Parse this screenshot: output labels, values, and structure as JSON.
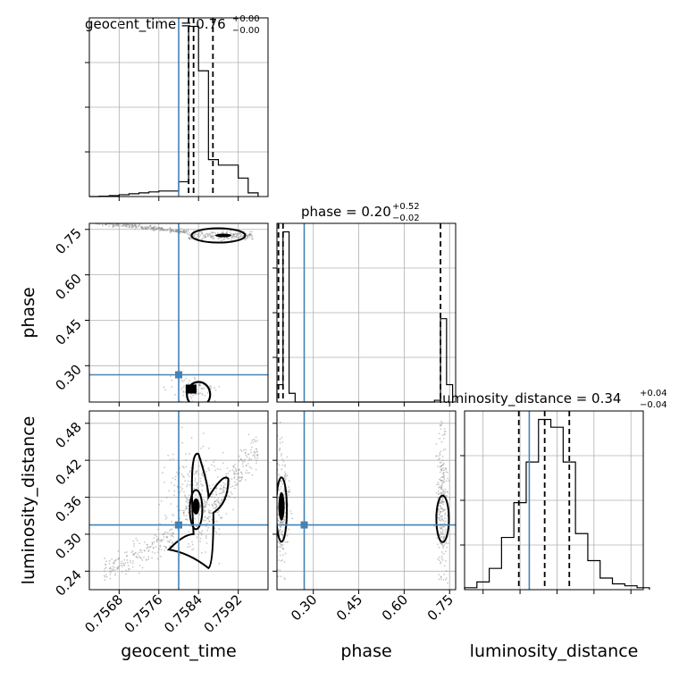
{
  "chart_data": {
    "type": "corner",
    "parameters": [
      {
        "name": "geocent_time",
        "range": [
          0.7562,
          0.7598
        ],
        "ticks": [
          "0.7568",
          "0.7576",
          "0.7584",
          "0.7592"
        ],
        "tick_values": [
          0.7568,
          0.7576,
          0.7584,
          0.7592
        ],
        "truth": 0.758,
        "quantiles": [
          0.7582,
          0.7583,
          0.75869
        ]
      },
      {
        "name": "phase",
        "range": [
          0.18,
          0.77
        ],
        "ticks": [
          "0.30",
          "0.45",
          "0.60",
          "0.75"
        ],
        "tick_values": [
          0.3,
          0.45,
          0.6,
          0.75
        ],
        "truth": 0.27,
        "quantiles": [
          0.185,
          0.2,
          0.72
        ]
      },
      {
        "name": "luminosity_distance",
        "range": [
          0.21,
          0.5
        ],
        "ticks": [
          "0.24",
          "0.30",
          "0.36",
          "0.42",
          "0.48"
        ],
        "tick_values": [
          0.24,
          0.3,
          0.36,
          0.42,
          0.48
        ],
        "truth": 0.315,
        "quantiles": [
          0.298,
          0.34,
          0.38
        ]
      }
    ],
    "titles": [
      {
        "main": "geocent_time = 0.76",
        "sup": "+0.00",
        "sub": "−0.00"
      },
      {
        "main": "phase = 0.20",
        "sup": "+0.52",
        "sub": "−0.02"
      },
      {
        "main": "luminosity_distance = 0.34",
        "sup": "+0.04",
        "sub": "−0.04"
      }
    ],
    "histograms": [
      {
        "param": "geocent_time",
        "bins": [
          0.7562,
          0.7564,
          0.7566,
          0.7568,
          0.757,
          0.7572,
          0.7574,
          0.7576,
          0.7578,
          0.758,
          0.7582,
          0.7584,
          0.7586,
          0.7588,
          0.759,
          0.7592,
          0.7594,
          0.7596
        ],
        "counts": [
          0,
          0.2,
          0.5,
          1,
          1.5,
          2,
          2.5,
          3,
          3,
          8,
          92,
          68,
          20,
          17,
          17,
          10,
          2,
          0
        ]
      },
      {
        "param": "phase",
        "bins": [
          0.18,
          0.2,
          0.22,
          0.24,
          0.26,
          0.28,
          0.3,
          0.32,
          0.34,
          0.36,
          0.38,
          0.4,
          0.42,
          0.44,
          0.46,
          0.48,
          0.5,
          0.52,
          0.54,
          0.56,
          0.58,
          0.6,
          0.62,
          0.64,
          0.66,
          0.68,
          0.7,
          0.72,
          0.74,
          0.76
        ],
        "counts": [
          10,
          98,
          5,
          0,
          0,
          0,
          0,
          0,
          0,
          0,
          0,
          0,
          0,
          0,
          0,
          0,
          0,
          0,
          0,
          0,
          0,
          0,
          0,
          0,
          0,
          0,
          1,
          48,
          10,
          0
        ]
      },
      {
        "param": "luminosity_distance",
        "bins": [
          0.21,
          0.23,
          0.25,
          0.27,
          0.29,
          0.31,
          0.33,
          0.35,
          0.37,
          0.39,
          0.41,
          0.43,
          0.45,
          0.47,
          0.49,
          0.51
        ],
        "counts": [
          1,
          4,
          11,
          27,
          45,
          66,
          88,
          84,
          66,
          29,
          15,
          6,
          3,
          2,
          1
        ]
      }
    ],
    "pairs": [
      {
        "x": "geocent_time",
        "y": "phase"
      },
      {
        "x": "geocent_time",
        "y": "luminosity_distance"
      },
      {
        "x": "phase",
        "y": "luminosity_distance"
      }
    ],
    "colors": {
      "truth": "#4682b4",
      "hist": "#000000",
      "grid": "#b0b0b0",
      "scatter": "#888888"
    }
  }
}
